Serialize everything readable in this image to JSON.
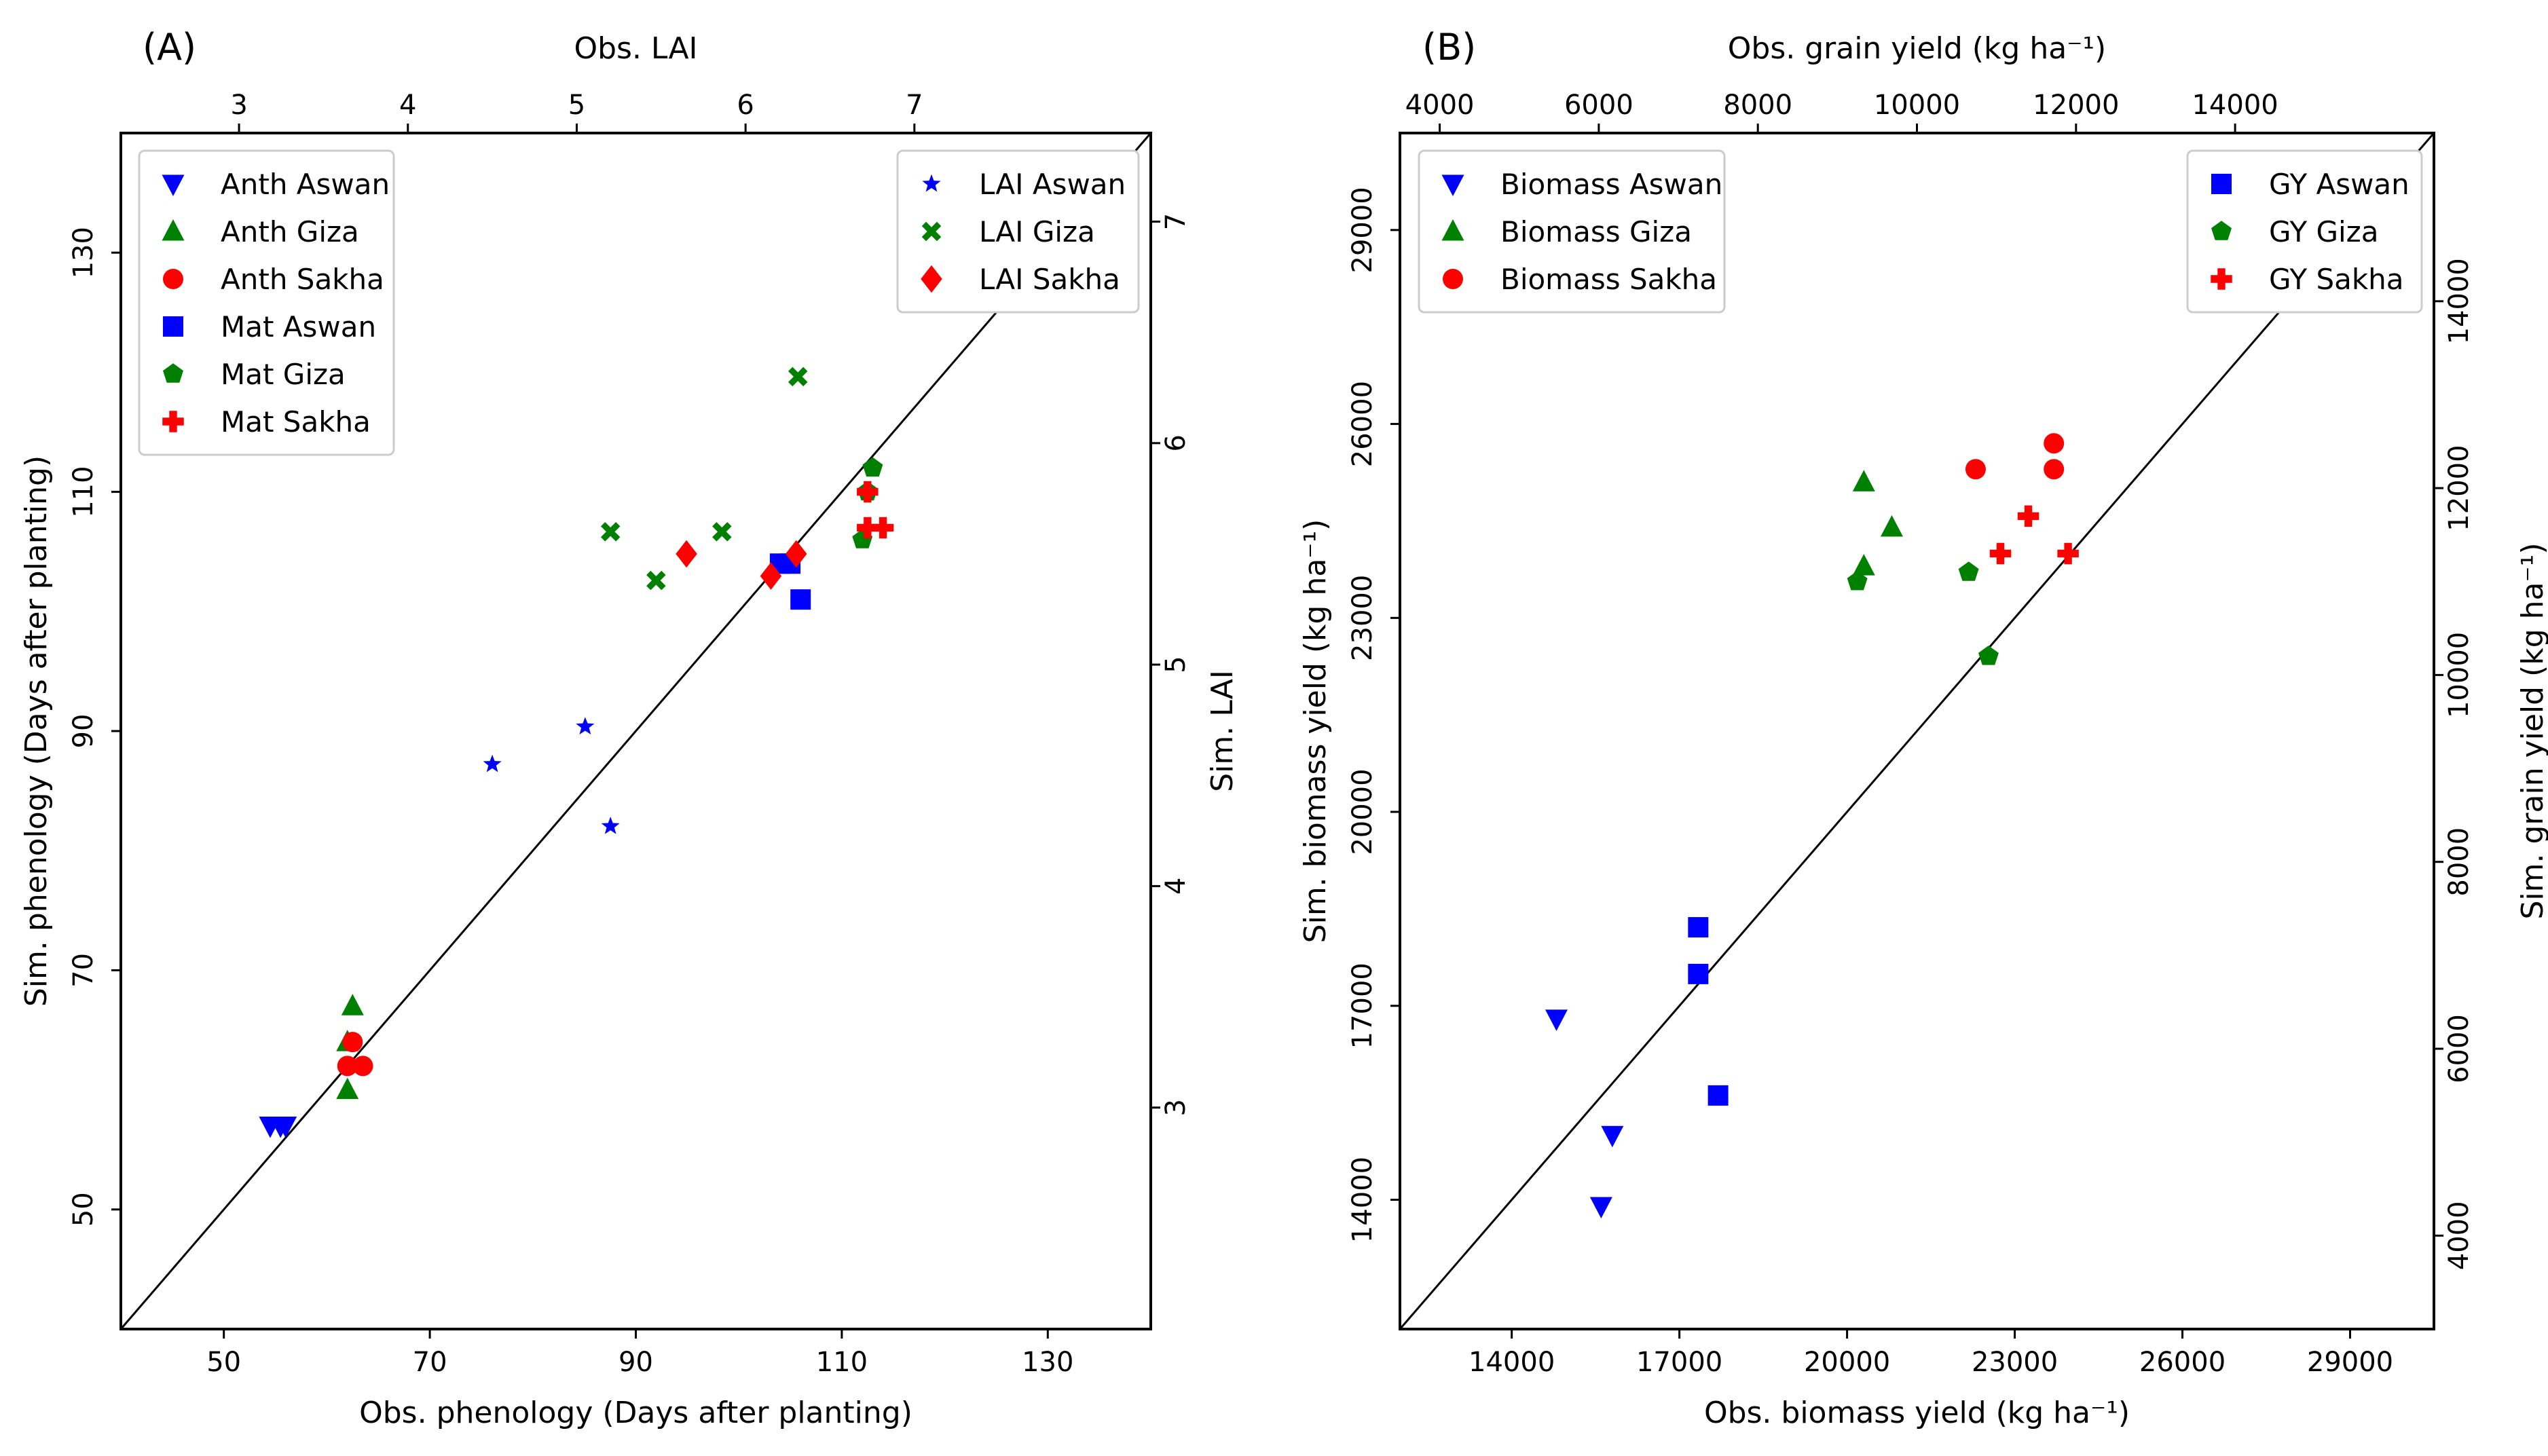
{
  "chart_data": [
    {
      "type": "scatter",
      "panel_label": "(A)",
      "bottom_axis": {
        "label": "Obs. phenology (Days after planting)",
        "range": [
          40,
          140
        ],
        "ticks": [
          50,
          70,
          90,
          110,
          130
        ]
      },
      "left_axis": {
        "label": "Sim. phenology (Days after planting)",
        "range": [
          40,
          140
        ],
        "ticks": [
          50,
          70,
          90,
          110,
          130
        ]
      },
      "top_axis": {
        "label": "Obs. LAI",
        "range": [
          2.3,
          8.4
        ],
        "ticks": [
          3,
          4,
          5,
          6,
          7
        ]
      },
      "right_axis": {
        "label": "Sim. LAI",
        "range": [
          2.0,
          7.4
        ],
        "ticks": [
          3,
          4,
          5,
          6,
          7
        ]
      },
      "one_to_one_line": true,
      "legend_left_position": "top-left",
      "legend_right_position": "top-right",
      "series": [
        {
          "name": "Anth Aswan",
          "axes": "bottom-left",
          "marker": "triangle-down",
          "color": "#0000ff",
          "points": [
            [
              54.5,
              57
            ],
            [
              55.5,
              57
            ],
            [
              56,
              57
            ]
          ]
        },
        {
          "name": "Anth Giza",
          "axes": "bottom-left",
          "marker": "triangle-up",
          "color": "#008000",
          "points": [
            [
              62.5,
              67
            ],
            [
              62,
              64
            ],
            [
              62,
              60
            ]
          ]
        },
        {
          "name": "Anth Sakha",
          "axes": "bottom-left",
          "marker": "circle",
          "color": "#ff0000",
          "points": [
            [
              62.5,
              64
            ],
            [
              62,
              62
            ],
            [
              63.5,
              62
            ]
          ]
        },
        {
          "name": "Mat Aswan",
          "axes": "bottom-left",
          "marker": "square",
          "color": "#0000ff",
          "points": [
            [
              104,
              104
            ],
            [
              105,
              104
            ],
            [
              106,
              101
            ]
          ]
        },
        {
          "name": "Mat Giza",
          "axes": "bottom-left",
          "marker": "pentagon",
          "color": "#008000",
          "points": [
            [
              113,
              112
            ],
            [
              112.5,
              110
            ],
            [
              112,
              106
            ]
          ]
        },
        {
          "name": "Mat Sakha",
          "axes": "bottom-left",
          "marker": "plus",
          "color": "#ff0000",
          "points": [
            [
              112.5,
              110
            ],
            [
              112.5,
              107
            ],
            [
              114,
              107
            ]
          ]
        },
        {
          "name": "LAI Aswan",
          "axes": "top-right",
          "marker": "star",
          "color": "#0000ff",
          "points": [
            [
              4.5,
              4.55
            ],
            [
              5.05,
              4.72
            ],
            [
              5.2,
              4.27
            ]
          ]
        },
        {
          "name": "LAI Giza",
          "axes": "top-right",
          "marker": "x",
          "color": "#008000",
          "points": [
            [
              5.2,
              5.6
            ],
            [
              5.47,
              5.38
            ],
            [
              5.86,
              5.6
            ],
            [
              6.31,
              6.3
            ]
          ]
        },
        {
          "name": "LAI Sakha",
          "axes": "top-right",
          "marker": "diamond",
          "color": "#ff0000",
          "points": [
            [
              5.65,
              5.5
            ],
            [
              6.15,
              5.4
            ],
            [
              6.3,
              5.5
            ]
          ]
        }
      ]
    },
    {
      "type": "scatter",
      "panel_label": "(B)",
      "bottom_axis": {
        "label": "Obs. biomass yield (kg ha⁻¹)",
        "range": [
          12000,
          30500
        ],
        "ticks": [
          14000,
          17000,
          20000,
          23000,
          26000,
          29000
        ]
      },
      "left_axis": {
        "label": "Sim. biomass yield (kg ha⁻¹)",
        "range": [
          12000,
          30500
        ],
        "ticks": [
          14000,
          17000,
          20000,
          23000,
          26000,
          29000
        ]
      },
      "top_axis": {
        "label": "Obs. grain yield (kg ha⁻¹)",
        "range": [
          3500,
          16500
        ],
        "ticks": [
          4000,
          6000,
          8000,
          10000,
          12000,
          14000
        ]
      },
      "right_axis": {
        "label": "Sim. grain yield (kg ha⁻¹)",
        "range": [
          3000,
          15800
        ],
        "ticks": [
          4000,
          6000,
          8000,
          10000,
          12000,
          14000
        ]
      },
      "one_to_one_line": true,
      "legend_left_position": "top-left",
      "legend_right_position": "top-right",
      "series": [
        {
          "name": "Biomass Aswan",
          "axes": "bottom-left",
          "marker": "triangle-down",
          "color": "#0000ff",
          "points": [
            [
              14800,
              16800
            ],
            [
              15800,
              15000
            ],
            [
              15600,
              13900
            ]
          ]
        },
        {
          "name": "Biomass Giza",
          "axes": "bottom-left",
          "marker": "triangle-up",
          "color": "#008000",
          "points": [
            [
              20300,
              25100
            ],
            [
              20800,
              24400
            ],
            [
              20300,
              23800
            ]
          ]
        },
        {
          "name": "Biomass Sakha",
          "axes": "bottom-left",
          "marker": "circle",
          "color": "#ff0000",
          "points": [
            [
              22300,
              25300
            ],
            [
              23700,
              25300
            ],
            [
              23700,
              25700
            ]
          ]
        },
        {
          "name": "GY Aswan",
          "axes": "top-right",
          "marker": "square",
          "color": "#0000ff",
          "points": [
            [
              7250,
              7300
            ],
            [
              7250,
              6800
            ],
            [
              7500,
              5500
            ]
          ]
        },
        {
          "name": "GY Giza",
          "axes": "top-right",
          "marker": "pentagon",
          "color": "#008000",
          "points": [
            [
              9250,
              11000
            ],
            [
              10650,
              11100
            ],
            [
              10900,
              10200
            ]
          ]
        },
        {
          "name": "GY Sakha",
          "axes": "top-right",
          "marker": "plus",
          "color": "#ff0000",
          "points": [
            [
              11050,
              11300
            ],
            [
              11400,
              11700
            ],
            [
              11900,
              11300
            ]
          ]
        }
      ]
    }
  ]
}
